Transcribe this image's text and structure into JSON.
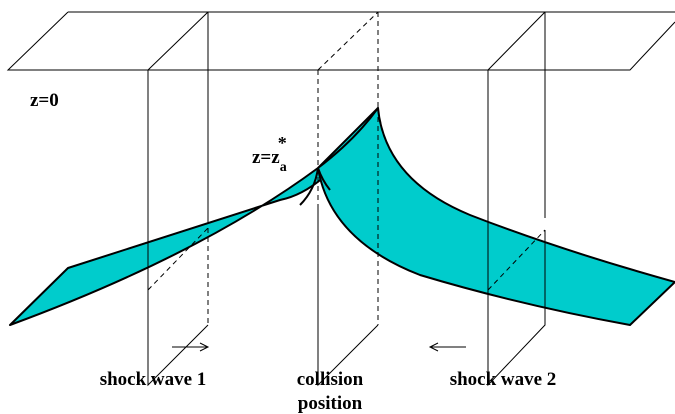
{
  "labels": {
    "z0": "z=0",
    "za_main": "z=z",
    "za_sub": "a",
    "za_sup": "*"
  },
  "captions": {
    "shock1": "shock wave 1",
    "collision": [
      "collision",
      "position"
    ],
    "shock2": "shock wave 2"
  }
}
